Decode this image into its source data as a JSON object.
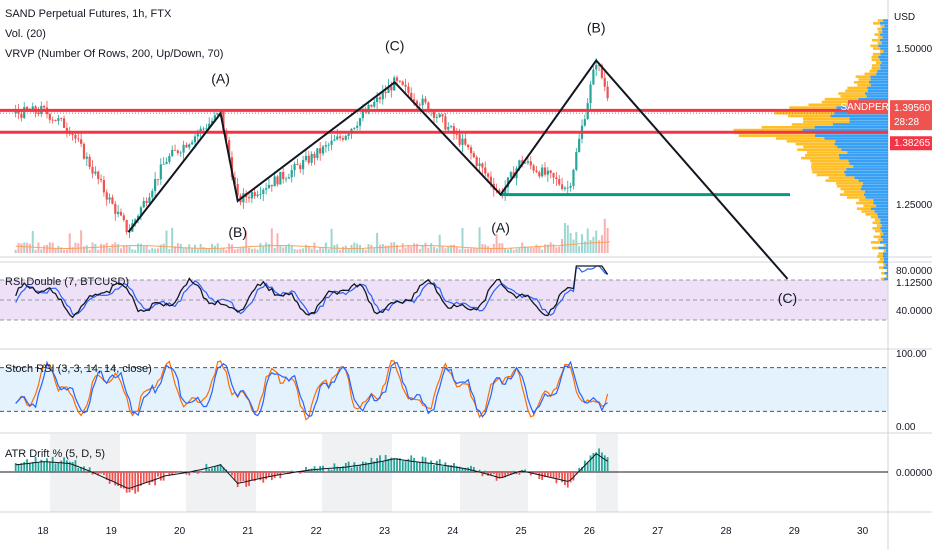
{
  "header": {
    "symbol": "SAND Perpetual Futures, 1h, FTX",
    "volume": "Vol. (20)",
    "vrvp": "VRVP (Number Of Rows, 200, Up/Down, 70)"
  },
  "currency": "USD",
  "price_badges": {
    "name": "SANDPERP",
    "price": "1.39560",
    "countdown": "28:28",
    "level": "1.38265"
  },
  "colors": {
    "up": "#26a69a",
    "down": "#ef5350",
    "ma": "#131722",
    "rsi_line": "#131722",
    "rsi_compare": "#2962ff",
    "stoch_k": "#2962ff",
    "stoch_d": "#ff6d00",
    "resistance": "#f23645",
    "support": "#089981",
    "vp_up": "#2196f3",
    "vp_down": "#ffb300",
    "rsi_band": "#ede0f7",
    "stoch_band": "#e3f2fd"
  },
  "indicators": {
    "rsi": "RSI Double (7, BTCUSD)",
    "stoch": "Stoch RSI (3, 3, 14, 14, close)",
    "atr": "ATR Drift % (5, D, 5)"
  },
  "chart_data": [
    {
      "type": "candlestick",
      "title": "SAND Perpetual Futures, 1h, FTX",
      "x": [
        "18",
        "19",
        "20",
        "21",
        "22",
        "23",
        "24",
        "25",
        "26",
        "27",
        "28",
        "29",
        "30"
      ],
      "price_path": [
        {
          "x": "17.6",
          "y": 1.395
        },
        {
          "x": "18.0",
          "y": 1.4
        },
        {
          "x": "18.4",
          "y": 1.37
        },
        {
          "x": "18.9",
          "y": 1.27
        },
        {
          "x": "19.25",
          "y": 1.205
        },
        {
          "x": "19.8",
          "y": 1.32
        },
        {
          "x": "20.6",
          "y": 1.395
        },
        {
          "x": "20.85",
          "y": 1.255
        },
        {
          "x": "21.6",
          "y": 1.3
        },
        {
          "x": "22.4",
          "y": 1.36
        },
        {
          "x": "23.15",
          "y": 1.445
        },
        {
          "x": "23.7",
          "y": 1.4
        },
        {
          "x": "24.2",
          "y": 1.34
        },
        {
          "x": "24.7",
          "y": 1.265
        },
        {
          "x": "25.0",
          "y": 1.32
        },
        {
          "x": "25.7",
          "y": 1.275
        },
        {
          "x": "26.1",
          "y": 1.48
        },
        {
          "x": "26.3",
          "y": 1.415
        }
      ],
      "yticks": [
        1.5,
        1.375,
        1.25,
        1.125
      ],
      "ytick_labels": [
        "1.50000",
        "1.37500",
        "1.25000",
        "1.12500"
      ],
      "ylim": [
        1.07,
        1.55
      ],
      "last_price": 1.3956,
      "horizontal_levels": [
        {
          "value": 1.4,
          "color": "resistance"
        },
        {
          "value": 1.365,
          "color": "resistance"
        },
        {
          "value": 1.265,
          "color": "support"
        }
      ],
      "wave_labels": [
        {
          "label": "(A)",
          "x": "20.6",
          "y": 1.395
        },
        {
          "label": "(B)",
          "x": "20.85",
          "y": 1.255
        },
        {
          "label": "(C)",
          "x": "23.15",
          "y": 1.445
        },
        {
          "label": "(A)",
          "x": "24.7",
          "y": 1.265
        },
        {
          "label": "(B)",
          "x": "26.1",
          "y": 1.48
        },
        {
          "label": "(C)",
          "x": "28.9",
          "y": 1.13
        }
      ]
    },
    {
      "type": "line",
      "title": "RSI Double (7, BTCUSD)",
      "yticks": [
        80,
        40
      ],
      "ytick_labels": [
        "80.0000",
        "40.0000"
      ],
      "ylim": [
        25,
        90
      ],
      "band": [
        30,
        70
      ]
    },
    {
      "type": "line",
      "title": "Stoch RSI (3, 3, 14, 14, close)",
      "yticks": [
        100,
        0
      ],
      "ytick_labels": [
        "100.00",
        "0.00"
      ],
      "ylim": [
        0,
        100
      ],
      "band": [
        20,
        80
      ]
    },
    {
      "type": "bar",
      "title": "ATR Drift % (5, D, 5)",
      "yticks": [
        0
      ],
      "ytick_labels": [
        "0.00000"
      ]
    }
  ]
}
